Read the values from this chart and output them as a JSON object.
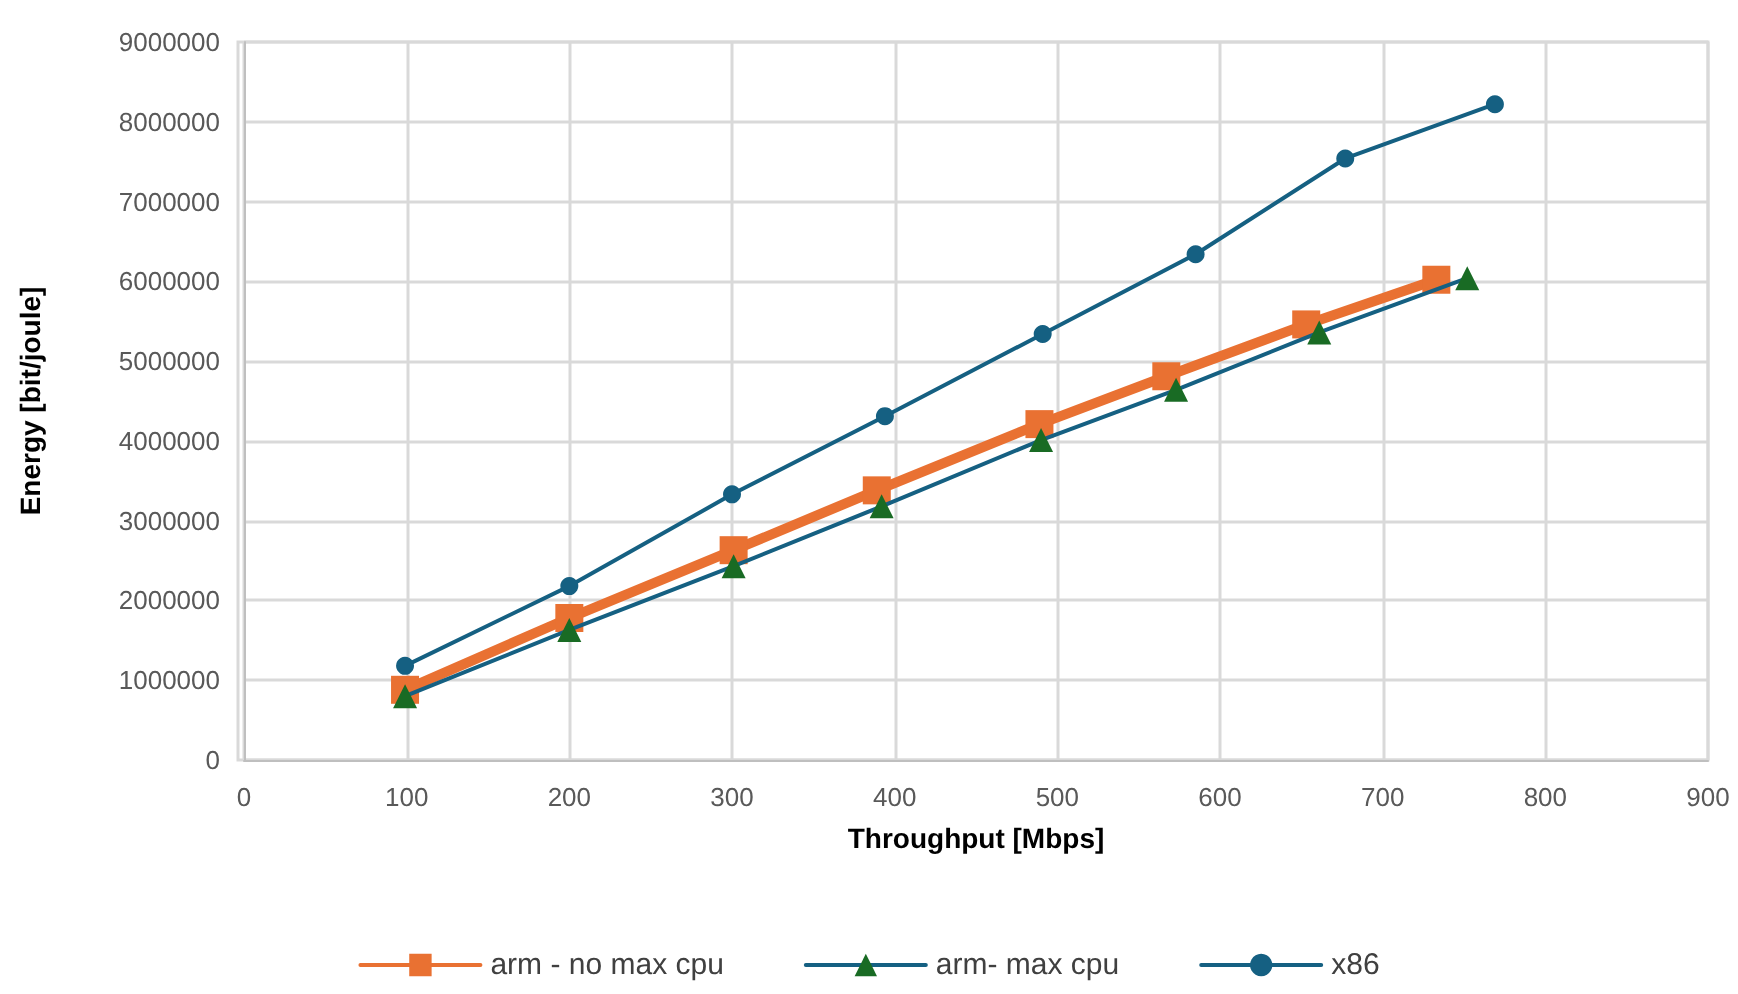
{
  "chart_data": {
    "type": "line",
    "xlabel": "Throughput [Mbps]",
    "ylabel": "Energy [bit/joule]",
    "xlim": [
      0,
      900
    ],
    "xticks": [
      0,
      100,
      200,
      300,
      400,
      500,
      600,
      700,
      800,
      900
    ],
    "ylim": [
      0,
      9000000
    ],
    "yticks": [
      0,
      1000000,
      2000000,
      3000000,
      4000000,
      5000000,
      6000000,
      7000000,
      8000000,
      9000000
    ],
    "grid": true,
    "legend": "bottom",
    "line_style": "solid",
    "series": [
      {
        "name": "arm - no max cpu",
        "color": "#e97132",
        "marker": "square",
        "x": [
          99,
          200,
          301,
          389,
          489,
          567,
          653,
          733
        ],
        "values": [
          880000,
          1780000,
          2630000,
          3380000,
          4210000,
          4810000,
          5460000,
          6020000
        ]
      },
      {
        "name": "arm- max cpu",
        "color": "#156082",
        "colors": [
          "#196b24",
          "#196b24",
          "#196b24",
          "#196b24",
          "#196b24",
          "#196b24",
          "#196b24",
          "#196b24"
        ],
        "marker": "triangle",
        "x": [
          99,
          200,
          301,
          392,
          490,
          573,
          661,
          752
        ],
        "values": [
          800000,
          1630000,
          2430000,
          3180000,
          4010000,
          4640000,
          5360000,
          6040000
        ]
      },
      {
        "name": "x86",
        "color": "#156082",
        "marker": "circle",
        "x": [
          99,
          200,
          300,
          394,
          491,
          585,
          677,
          769
        ],
        "values": [
          1180000,
          2180000,
          3330000,
          4310000,
          5340000,
          6340000,
          7540000,
          8220000
        ]
      }
    ]
  }
}
